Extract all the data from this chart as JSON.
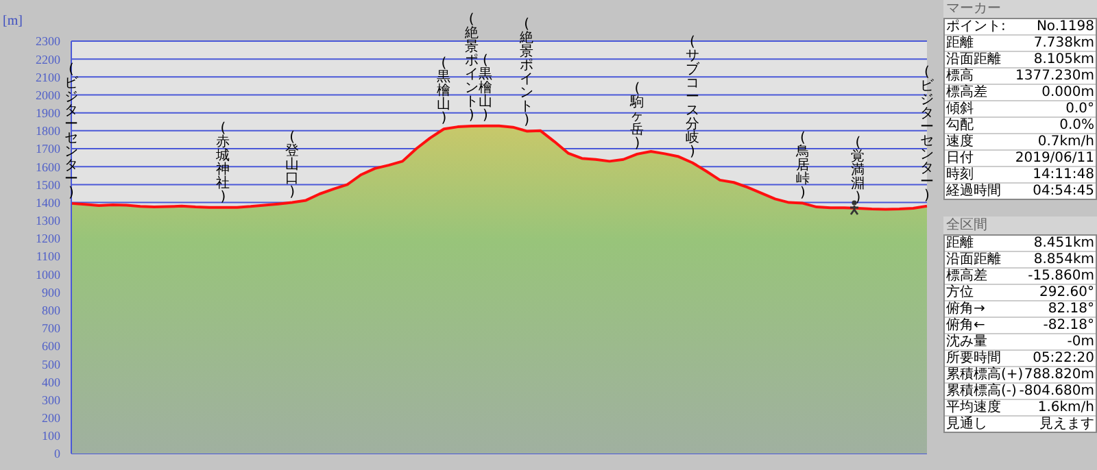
{
  "chart_data": [
    {
      "type": "area",
      "ylabel": "[m]",
      "ylim": [
        0,
        2300
      ],
      "yticks": [
        0,
        100,
        200,
        300,
        400,
        500,
        600,
        700,
        800,
        900,
        1000,
        1100,
        1200,
        1300,
        1400,
        1500,
        1600,
        1700,
        1800,
        1900,
        2000,
        2100,
        2200,
        2300
      ],
      "grid": "y",
      "categories": [
        "(ビジターセンター)",
        null,
        null,
        null,
        null,
        null,
        null,
        null,
        null,
        null,
        null,
        "(赤城神社)",
        null,
        null,
        null,
        null,
        "(登山口)",
        null,
        null,
        null,
        null,
        null,
        null,
        null,
        null,
        null,
        null,
        "(黒檜山)",
        null,
        "(絶景ポイント)",
        "(黒檜山)",
        null,
        null,
        "(絶景ポイント)",
        null,
        null,
        null,
        null,
        null,
        null,
        null,
        "(駒ヶ岳)",
        null,
        null,
        null,
        "(サブコース分岐)",
        null,
        null,
        null,
        null,
        null,
        null,
        null,
        "(鳥居峠)",
        null,
        null,
        null,
        "(覚満淵)",
        null,
        null,
        null,
        null,
        "(ビジターセンター)"
      ],
      "series": [
        {
          "color": "#ff1010",
          "values": [
            1395,
            1390,
            1383,
            1387,
            1385,
            1378,
            1375,
            1377,
            1380,
            1375,
            1373,
            1373,
            1373,
            1378,
            1385,
            1392,
            1400,
            1412,
            1448,
            1475,
            1500,
            1555,
            1590,
            1608,
            1630,
            1700,
            1760,
            1810,
            1822,
            1826,
            1827,
            1827,
            1820,
            1798,
            1800,
            1740,
            1675,
            1646,
            1640,
            1630,
            1640,
            1670,
            1685,
            1672,
            1656,
            1622,
            1575,
            1525,
            1512,
            1485,
            1452,
            1420,
            1400,
            1396,
            1375,
            1371,
            1371,
            1368,
            1364,
            1362,
            1364,
            1368,
            1380
          ]
        }
      ]
    },
    {
      "type": "other",
      "title": "マーカー",
      "annotations": [
        "ポイント:",
        "No.1198",
        "距離",
        "7.738km",
        "沿面距離",
        "8.105km",
        "標高",
        "1377.230m",
        "標高差",
        "0.000m",
        "傾斜",
        "0.0°",
        "勾配",
        "0.0%",
        "速度",
        "0.7km/h",
        "日付",
        "2019/06/11",
        "時刻",
        "14:11:48",
        "経過時間",
        "04:54:45"
      ]
    },
    {
      "type": "other",
      "title": "全区間",
      "annotations": [
        "距離",
        "8.451km",
        "沿面距離",
        "8.854km",
        "標高差",
        "-15.860m",
        "方位",
        "292.60°",
        "俯角→",
        "82.18°",
        "俯角←",
        "-82.18°",
        "沈み量",
        "-0m",
        "所要時間",
        "05:22:20",
        "累積標高(+)",
        "788.820m",
        "累積標高(-)",
        "-804.680m",
        "平均速度",
        "1.6km/h",
        "見通し",
        "見えます"
      ]
    }
  ]
}
